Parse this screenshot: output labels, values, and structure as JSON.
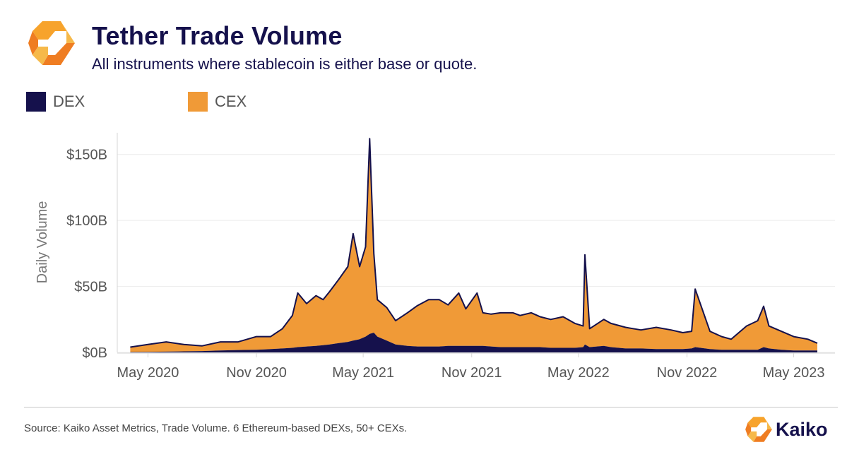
{
  "header": {
    "title": "Tether Trade Volume",
    "subtitle": "All instruments where stablecoin is either base or quote."
  },
  "legend": [
    {
      "label": "DEX",
      "color": "#15114c"
    },
    {
      "label": "CEX",
      "color": "#f09a37"
    }
  ],
  "footer": {
    "source": "Source: Kaiko Asset Metrics, Trade Volume. 6 Ethereum-based DEXs, 50+ CEXs.",
    "brand": "Kaiko"
  },
  "chart_data": {
    "type": "area",
    "stacked": true,
    "ylabel": "Daily Volume",
    "xlabel": "",
    "x_ticks": [
      "May 2020",
      "Nov 2020",
      "May 2021",
      "Nov 2021",
      "May 2022",
      "Nov 2022",
      "May 2023"
    ],
    "y_ticks": [
      "$0B",
      "$50B",
      "$100B",
      "$150B"
    ],
    "ylim": [
      0,
      160
    ],
    "y_unit": "B USD",
    "grid": true,
    "legend_position": "top-left",
    "x": [
      "2020-04-01",
      "2020-05-01",
      "2020-06-01",
      "2020-07-01",
      "2020-08-01",
      "2020-09-01",
      "2020-10-01",
      "2020-11-01",
      "2020-11-25",
      "2020-12-15",
      "2021-01-01",
      "2021-01-10",
      "2021-01-25",
      "2021-02-10",
      "2021-02-22",
      "2021-03-05",
      "2021-03-20",
      "2021-04-05",
      "2021-04-14",
      "2021-04-25",
      "2021-05-05",
      "2021-05-12",
      "2021-05-19",
      "2021-05-25",
      "2021-06-10",
      "2021-06-25",
      "2021-07-15",
      "2021-08-01",
      "2021-08-20",
      "2021-09-07",
      "2021-09-22",
      "2021-10-10",
      "2021-10-22",
      "2021-11-10",
      "2021-11-20",
      "2021-12-04",
      "2021-12-20",
      "2022-01-10",
      "2022-01-22",
      "2022-02-10",
      "2022-02-25",
      "2022-03-15",
      "2022-04-05",
      "2022-04-25",
      "2022-05-09",
      "2022-05-12",
      "2022-05-20",
      "2022-06-13",
      "2022-06-25",
      "2022-07-20",
      "2022-08-15",
      "2022-09-10",
      "2022-10-05",
      "2022-10-25",
      "2022-11-09",
      "2022-11-15",
      "2022-12-10",
      "2022-12-30",
      "2023-01-15",
      "2023-02-10",
      "2023-03-01",
      "2023-03-11",
      "2023-03-20",
      "2023-04-10",
      "2023-05-01",
      "2023-05-25",
      "2023-06-10"
    ],
    "series": [
      {
        "name": "DEX",
        "values": [
          0.3,
          0.4,
          0.6,
          0.8,
          1.0,
          1.5,
          1.8,
          2.0,
          2.5,
          3.0,
          3.5,
          4.0,
          4.5,
          5.0,
          5.5,
          6.0,
          7.0,
          8.0,
          9.0,
          10.0,
          12.0,
          14.0,
          15.0,
          12.0,
          9.0,
          6.0,
          5.0,
          4.5,
          4.5,
          4.5,
          5.0,
          5.0,
          5.0,
          5.0,
          5.0,
          4.5,
          4.0,
          4.0,
          4.0,
          4.0,
          4.0,
          3.5,
          3.5,
          3.5,
          4.0,
          6.0,
          4.0,
          5.0,
          4.0,
          3.0,
          3.0,
          2.5,
          2.5,
          2.5,
          3.0,
          4.0,
          2.5,
          2.0,
          2.0,
          2.0,
          2.0,
          4.0,
          3.0,
          2.0,
          1.5,
          1.5,
          1.5
        ]
      },
      {
        "name": "CEX",
        "values": [
          3.7,
          5.6,
          7.4,
          5.2,
          4.0,
          6.5,
          6.2,
          10.0,
          9.5,
          15.0,
          24.5,
          41.0,
          32.5,
          38.0,
          34.5,
          40.0,
          48.0,
          57.0,
          81.0,
          55.0,
          68.0,
          148.0,
          60.0,
          28.0,
          25.0,
          18.0,
          25.0,
          31.0,
          35.5,
          35.5,
          31.0,
          40.0,
          28.0,
          40.0,
          25.0,
          24.5,
          26.0,
          26.0,
          24.0,
          26.0,
          23.0,
          21.5,
          23.5,
          18.5,
          16.0,
          68.0,
          14.0,
          20.0,
          18.0,
          16.0,
          14.0,
          16.5,
          14.5,
          12.5,
          13.0,
          44.0,
          13.5,
          10.0,
          8.0,
          18.0,
          22.0,
          31.0,
          17.0,
          14.0,
          10.5,
          8.5,
          5.5
        ]
      }
    ]
  }
}
